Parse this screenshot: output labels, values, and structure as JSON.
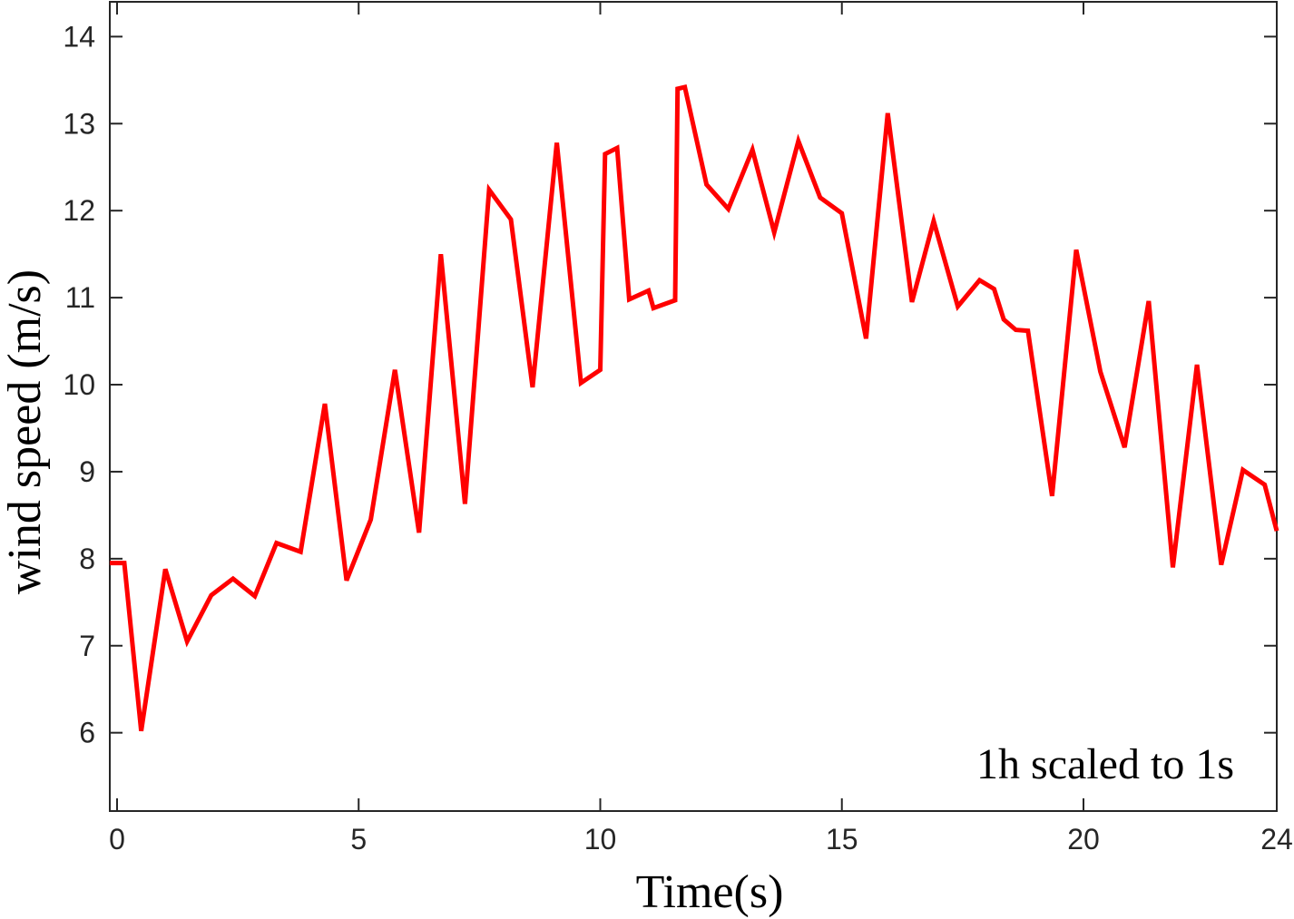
{
  "chart_data": {
    "type": "line",
    "title": "",
    "xlabel": "Time(s)",
    "ylabel": "wind speed (m/s)",
    "annotation": "1h scaled to 1s",
    "xlim": [
      -0.15,
      24
    ],
    "ylim": [
      5.1,
      14.4
    ],
    "xticks": [
      0,
      5,
      10,
      15,
      20,
      24
    ],
    "yticks": [
      6,
      7,
      8,
      9,
      10,
      11,
      12,
      13,
      14
    ],
    "grid": false,
    "line_color": "#ff0000",
    "series": [
      {
        "x": [
          -0.15,
          0.15,
          0.5,
          1.0,
          1.45,
          1.95,
          2.4,
          2.85,
          3.3,
          3.8,
          4.3,
          4.75,
          5.25,
          5.75,
          6.25,
          6.7,
          7.2,
          7.7,
          8.15,
          8.6,
          9.1,
          9.6,
          10.0,
          10.1,
          10.35,
          10.6,
          11.0,
          11.1,
          11.55,
          11.6,
          11.75,
          12.2,
          12.65,
          13.15,
          13.6,
          14.1,
          14.55,
          15.0,
          15.5,
          15.95,
          16.45,
          16.9,
          17.4,
          17.85,
          18.15,
          18.35,
          18.6,
          18.85,
          19.35,
          19.85,
          20.35,
          20.85,
          21.35,
          21.85,
          22.35,
          22.85,
          23.3,
          23.75,
          24.0
        ],
        "y": [
          7.95,
          7.95,
          6.02,
          7.88,
          7.05,
          7.58,
          7.77,
          7.57,
          8.18,
          8.08,
          9.78,
          7.75,
          8.45,
          10.17,
          8.3,
          11.5,
          8.63,
          12.24,
          11.9,
          9.97,
          12.78,
          10.02,
          10.17,
          12.65,
          12.72,
          10.98,
          11.08,
          10.88,
          10.97,
          13.4,
          13.42,
          12.3,
          12.02,
          12.7,
          11.75,
          12.8,
          12.15,
          11.97,
          10.53,
          13.12,
          10.95,
          11.88,
          10.9,
          11.2,
          11.1,
          10.75,
          10.63,
          10.62,
          8.72,
          11.55,
          10.15,
          9.28,
          10.96,
          7.9,
          10.23,
          7.93,
          9.02,
          8.85,
          8.32
        ]
      }
    ]
  }
}
